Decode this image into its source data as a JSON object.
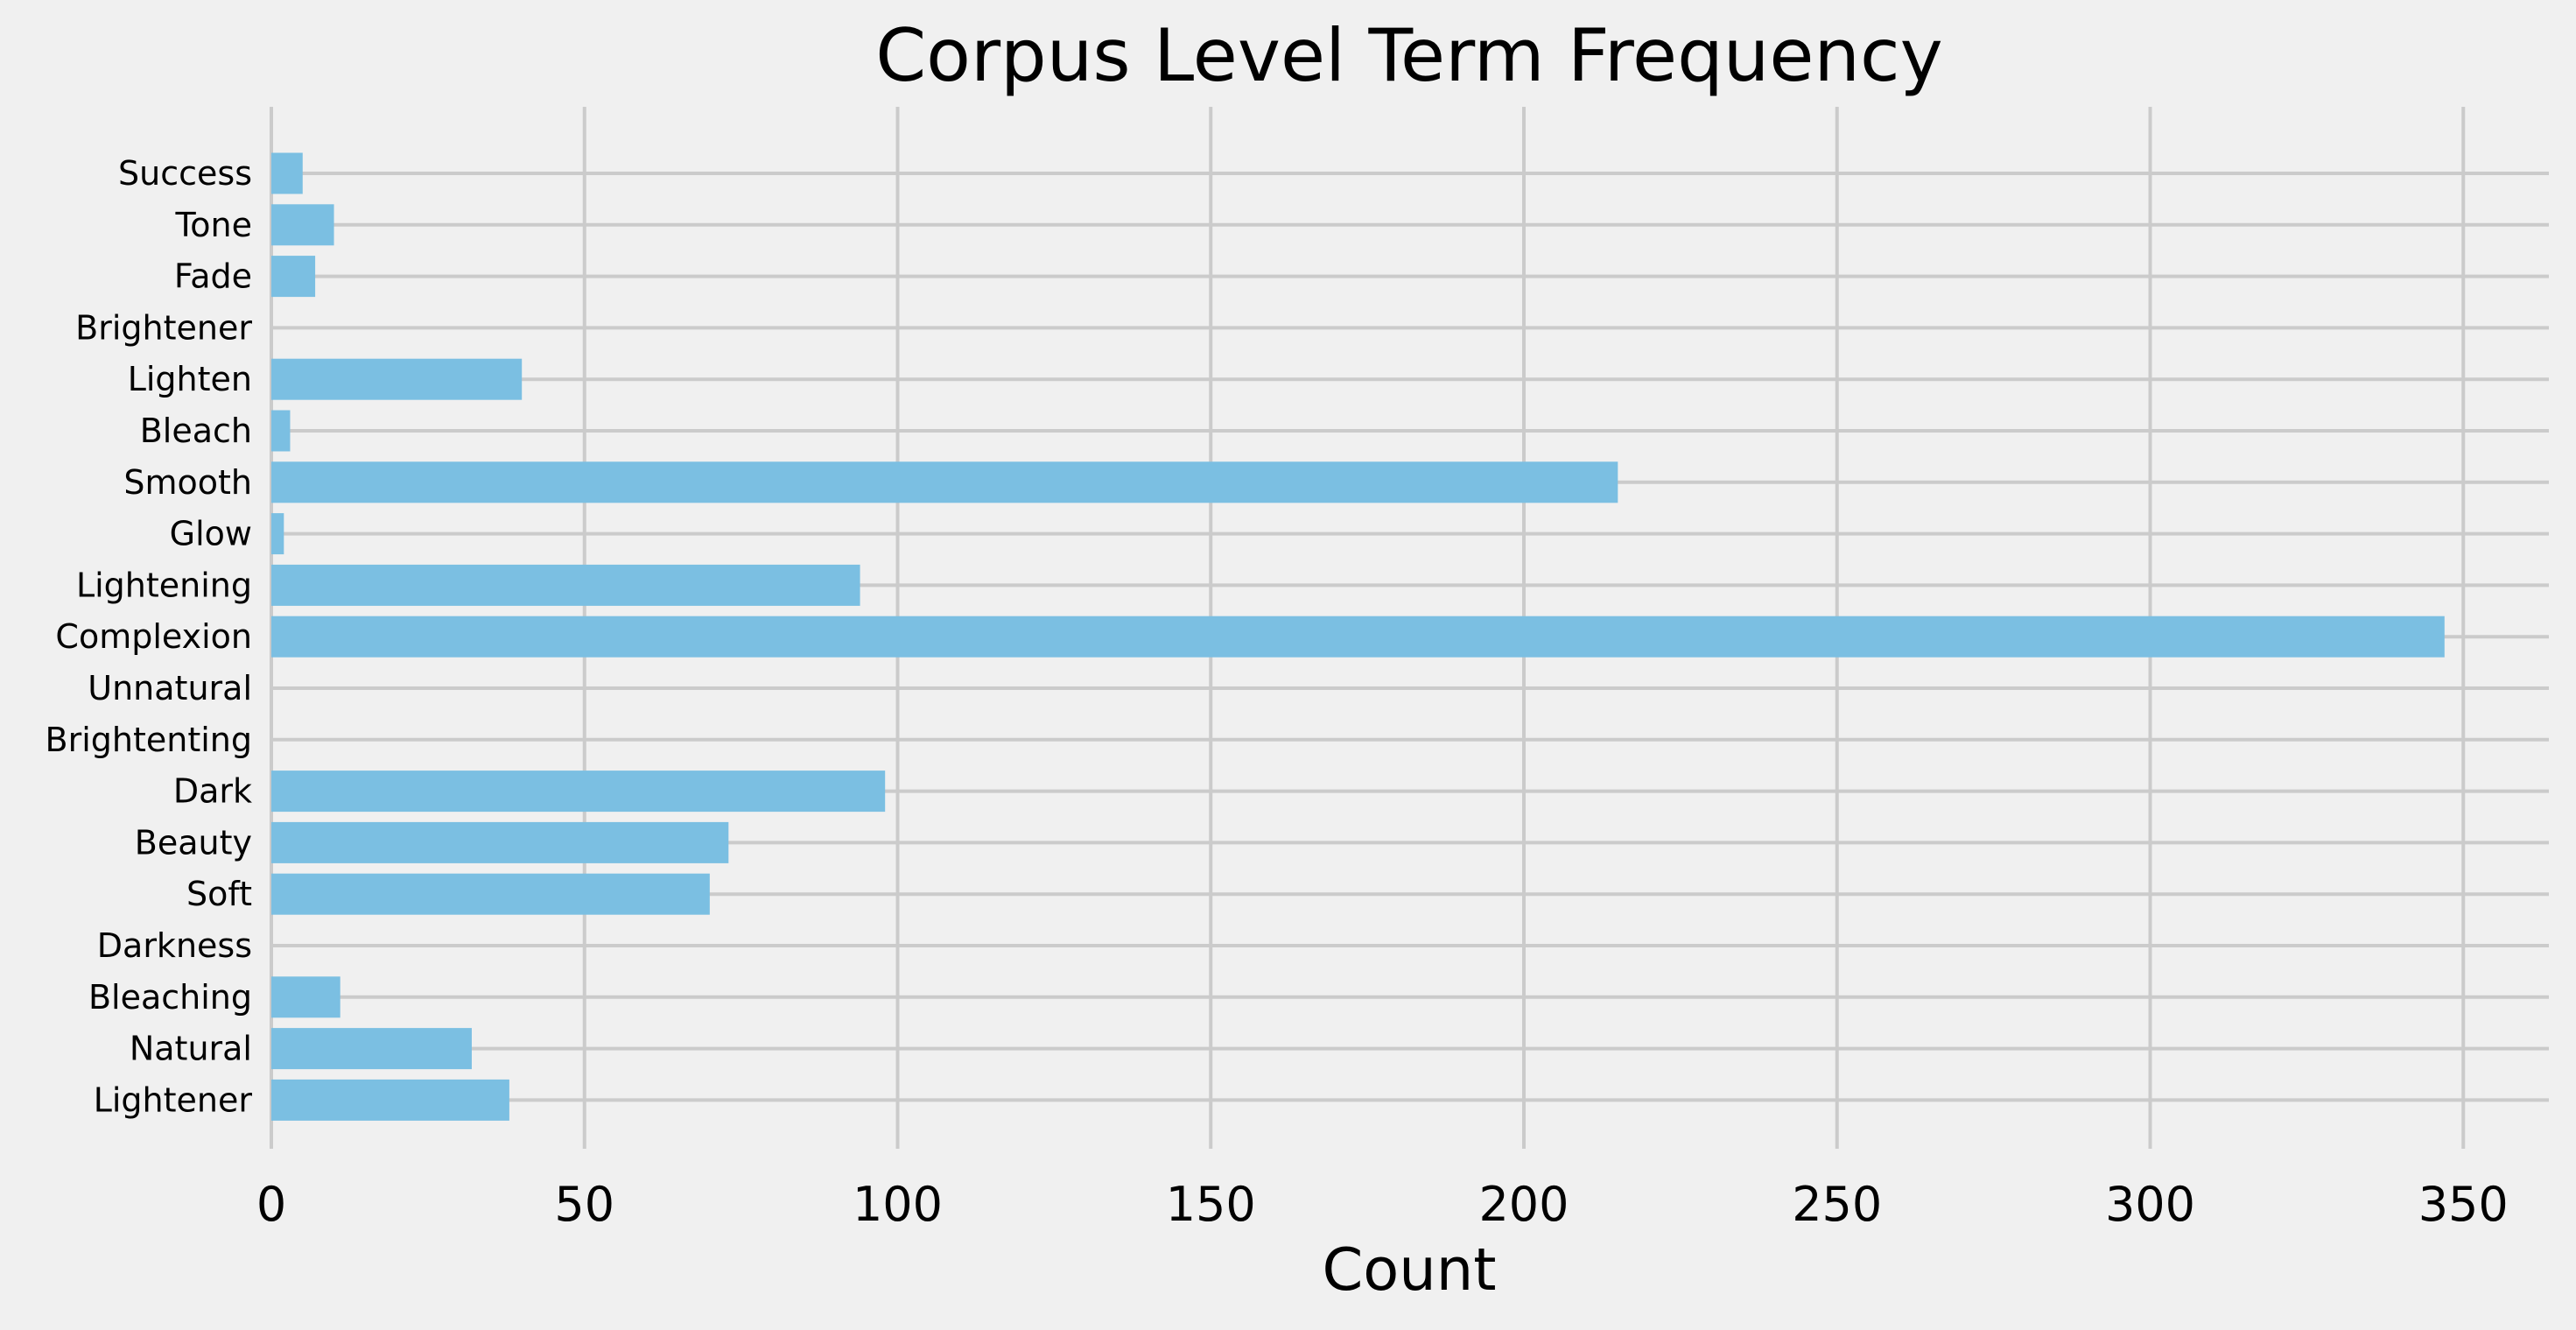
{
  "chart_data": {
    "type": "bar",
    "orientation": "horizontal",
    "title": "Corpus Level Term Frequency",
    "xlabel": "Count",
    "ylabel": "",
    "categories": [
      "Success",
      "Tone",
      "Fade",
      "Brightener",
      "Lighten",
      "Bleach",
      "Smooth",
      "Glow",
      "Lightening",
      "Complexion",
      "Unnatural",
      "Brightenting",
      "Dark",
      "Beauty",
      "Soft",
      "Darkness",
      "Bleaching",
      "Natural",
      "Lightener"
    ],
    "values": [
      5,
      10,
      7,
      0,
      40,
      3,
      215,
      2,
      94,
      347,
      0,
      0,
      98,
      73,
      70,
      0,
      11,
      32,
      38
    ],
    "xlim": [
      0,
      362
    ],
    "xticks": [
      0,
      50,
      100,
      150,
      200,
      250,
      300,
      350
    ],
    "grid": true,
    "bar_color": "#7bbfe2",
    "background_color": "#f0f0f0",
    "grid_color": "#cbcbcb"
  }
}
